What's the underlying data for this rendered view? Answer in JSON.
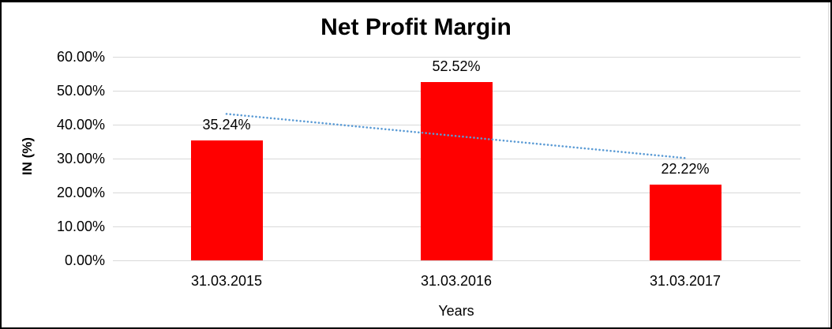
{
  "window": {
    "background": "#ffffff",
    "border_color": "#000000"
  },
  "chart_data": {
    "type": "bar",
    "title": "Net Profit Margin",
    "xlabel": "Years",
    "ylabel": "IN (%)",
    "categories": [
      "31.03.2015",
      "31.03.2016",
      "31.03.2017"
    ],
    "series": [
      {
        "name": "Net Profit Margin",
        "values": [
          35.24,
          52.52,
          22.22
        ]
      }
    ],
    "data_labels": [
      "35.24%",
      "52.52%",
      "22.22%"
    ],
    "y_ticks": [
      "60.00%",
      "50.00%",
      "40.00%",
      "30.00%",
      "20.00%",
      "10.00%",
      "0.00%"
    ],
    "ylim": [
      0,
      60
    ],
    "y_tick_step": 10,
    "grid": true,
    "legend_position": "none",
    "bar_color": "#FF0000",
    "gridline_color": "#D9D9D9",
    "text_color": "#000000",
    "trendline": {
      "style": "dotted",
      "color": "#5B9BD5",
      "start_percent": 43.17,
      "end_percent": 30.15
    }
  }
}
